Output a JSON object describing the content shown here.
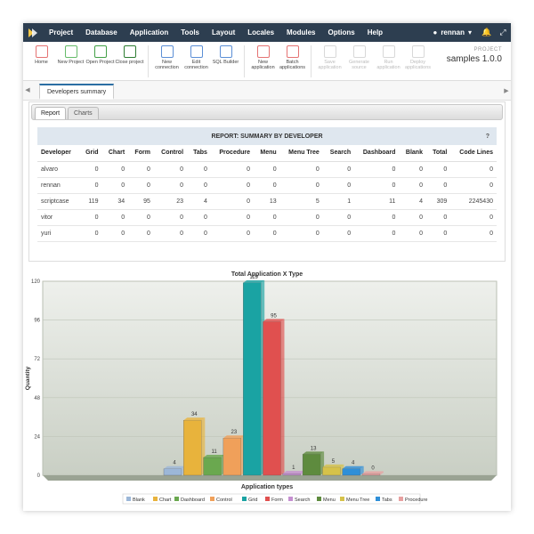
{
  "menubar": {
    "items": [
      "Project",
      "Database",
      "Application",
      "Tools",
      "Layout",
      "Locales",
      "Modules",
      "Options",
      "Help"
    ],
    "user": "rennan"
  },
  "toolbar": {
    "groups": [
      [
        {
          "label": "Home",
          "color": "#e57373"
        },
        {
          "label": "New Project",
          "color": "#66bb6a"
        },
        {
          "label": "Open Project",
          "color": "#43a047"
        },
        {
          "label": "Close project",
          "color": "#2e7d32"
        }
      ],
      [
        {
          "label": "New connection",
          "color": "#5c8fd6"
        },
        {
          "label": "Edit connection",
          "color": "#5c8fd6"
        },
        {
          "label": "SQL Builder",
          "color": "#5c8fd6"
        }
      ],
      [
        {
          "label": "New application",
          "color": "#e57373"
        },
        {
          "label": "Batch applications",
          "color": "#e57373"
        }
      ]
    ],
    "disabled": [
      "Save application",
      "Generate source",
      "Run application",
      "Deploy applications"
    ],
    "project_label": "PROJECT",
    "project_name": "samples 1.0.0"
  },
  "tabs": {
    "doc_tab": "Developers summary",
    "subtabs": [
      "Report",
      "Charts"
    ]
  },
  "report": {
    "title": "REPORT: SUMMARY BY DEVELOPER",
    "help": "?",
    "columns": [
      "Developer",
      "Grid",
      "Chart",
      "Form",
      "Control",
      "Tabs",
      "Procedure",
      "Menu",
      "Menu Tree",
      "Search",
      "Dashboard",
      "Blank",
      "Total",
      "Code Lines"
    ],
    "rows": [
      [
        "alvaro",
        "0",
        "0",
        "0",
        "0",
        "0",
        "0",
        "0",
        "0",
        "0",
        "0",
        "0",
        "0",
        "0"
      ],
      [
        "rennan",
        "0",
        "0",
        "0",
        "0",
        "0",
        "0",
        "0",
        "0",
        "0",
        "0",
        "0",
        "0",
        "0"
      ],
      [
        "scriptcase",
        "119",
        "34",
        "95",
        "23",
        "4",
        "0",
        "13",
        "5",
        "1",
        "11",
        "4",
        "309",
        "2245430"
      ],
      [
        "vitor",
        "0",
        "0",
        "0",
        "0",
        "0",
        "0",
        "0",
        "0",
        "0",
        "0",
        "0",
        "0",
        "0"
      ],
      [
        "yuri",
        "0",
        "0",
        "0",
        "0",
        "0",
        "0",
        "0",
        "0",
        "0",
        "0",
        "0",
        "0",
        "0"
      ]
    ]
  },
  "chart_data": {
    "type": "bar",
    "title": "Total Application X Type",
    "xlabel": "Application types",
    "ylabel": "Quantity",
    "ylim": [
      0,
      120
    ],
    "yticks": [
      0,
      24,
      48,
      72,
      96,
      120
    ],
    "categories": [
      "Blank",
      "Chart",
      "Dashboard",
      "Control",
      "Grid",
      "Form",
      "Search",
      "Menu",
      "Menu Tree",
      "Tabs",
      "Procedure"
    ],
    "values": [
      4,
      34,
      11,
      23,
      119,
      95,
      1,
      13,
      5,
      4,
      0
    ],
    "colors": [
      "#9cb7d8",
      "#e8b33c",
      "#6aa84f",
      "#f0a05a",
      "#1aa3a3",
      "#e0504f",
      "#c58fd0",
      "#5e8b3e",
      "#d6c24a",
      "#2f8fd8",
      "#e7a0a0"
    ],
    "legend_position": "bottom",
    "grid": true
  }
}
